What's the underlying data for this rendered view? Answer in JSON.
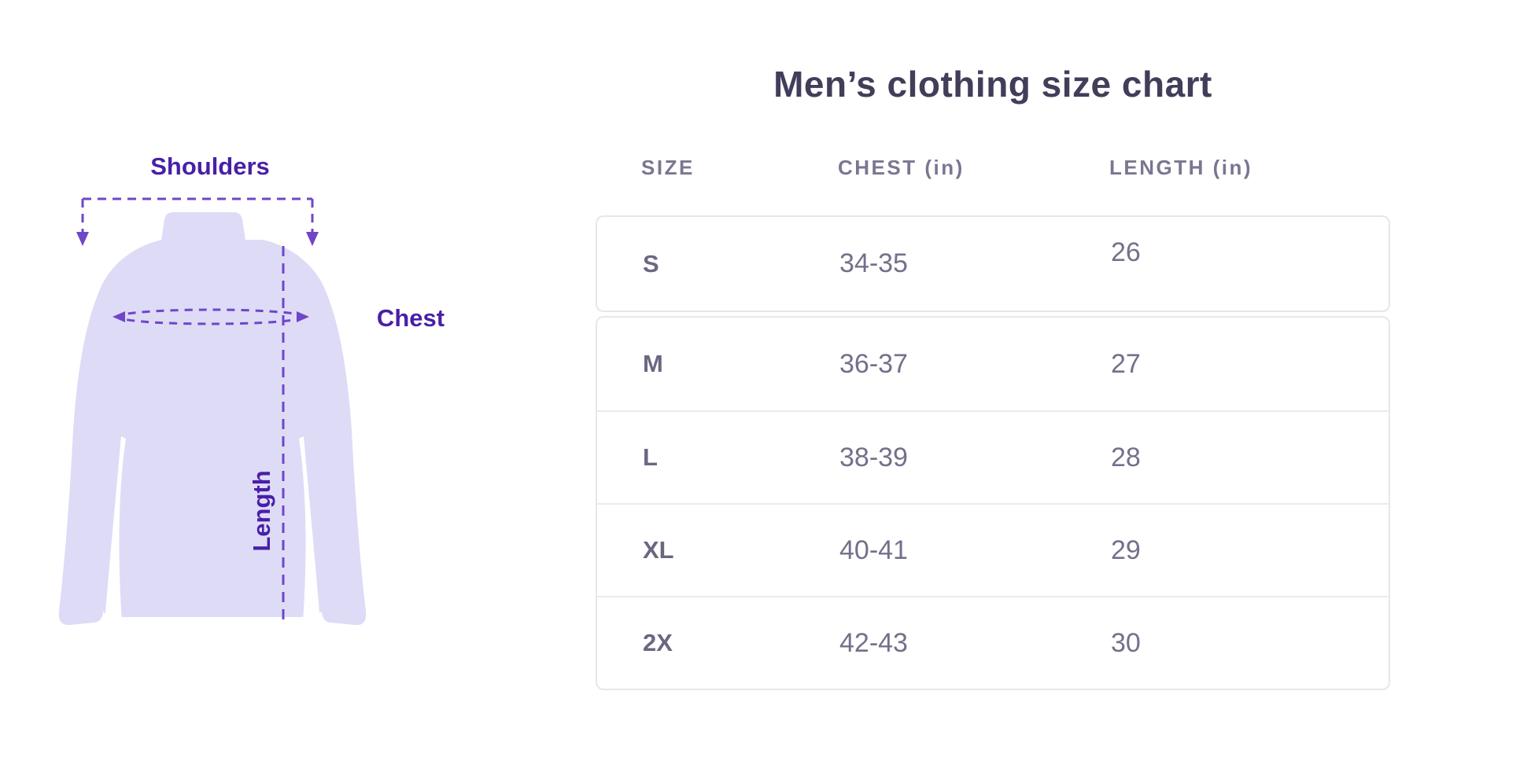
{
  "diagram": {
    "labels": {
      "shoulders": "Shoulders",
      "chest": "Chest",
      "length": "Length"
    },
    "colors": {
      "label_purple": "#481fa8",
      "dash_purple": "#6f46c8",
      "shirt_fill": "#dedbf7"
    }
  },
  "size_chart": {
    "title": "Men’s clothing size chart",
    "columns": [
      "SIZE",
      "CHEST (in)",
      "LENGTH (in)"
    ],
    "rows": [
      {
        "size": "S",
        "chest": "34-35",
        "length": "26"
      },
      {
        "size": "M",
        "chest": "36-37",
        "length": "27"
      },
      {
        "size": "L",
        "chest": "38-39",
        "length": "28"
      },
      {
        "size": "XL",
        "chest": "40-41",
        "length": "29"
      },
      {
        "size": "2X",
        "chest": "42-43",
        "length": "30"
      }
    ],
    "colors": {
      "title": "#413e5a",
      "header": "#7b7690",
      "text": "#74708a",
      "border": "#e7e6eb"
    }
  },
  "chart_data": {
    "type": "table",
    "title": "Men’s clothing size chart",
    "columns": [
      "SIZE",
      "CHEST (in)",
      "LENGTH (in)"
    ],
    "rows": [
      [
        "S",
        "34-35",
        "26"
      ],
      [
        "M",
        "36-37",
        "27"
      ],
      [
        "L",
        "38-39",
        "28"
      ],
      [
        "XL",
        "40-41",
        "29"
      ],
      [
        "2X",
        "42-43",
        "30"
      ]
    ]
  }
}
